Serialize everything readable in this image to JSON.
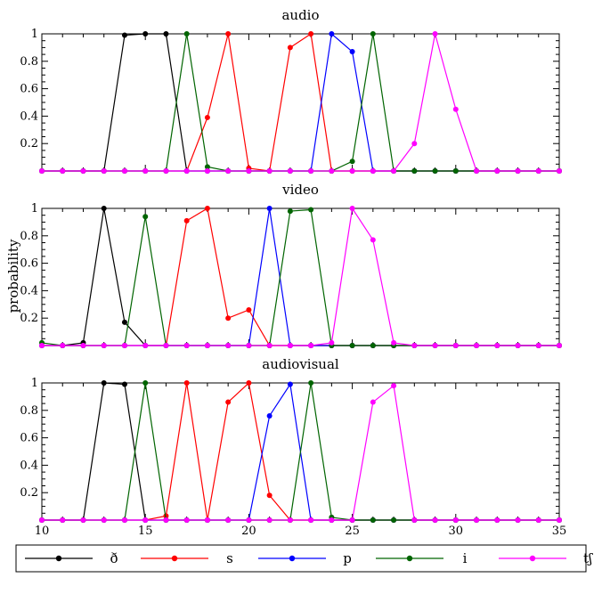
{
  "figure": {
    "ylabel": "probability"
  },
  "chart_data": [
    {
      "type": "line",
      "title": "audio",
      "xlim": [
        10,
        35
      ],
      "ylim": [
        0,
        1
      ],
      "yticks": [
        "0.2",
        "0.4",
        "0.6",
        "0.8",
        "1"
      ],
      "xticks": [
        "10",
        "15",
        "20",
        "25",
        "30",
        "35"
      ],
      "show_xtick_labels": false,
      "x": [
        10,
        11,
        12,
        13,
        14,
        15,
        16,
        17,
        18,
        19,
        20,
        21,
        22,
        23,
        24,
        25,
        26,
        27,
        28,
        29,
        30,
        31,
        32,
        33,
        34,
        35
      ],
      "series": [
        {
          "name": "ð",
          "color": "#000000",
          "values": [
            0,
            0,
            0,
            0,
            0.99,
            1,
            1,
            0,
            0,
            0,
            0,
            0,
            0,
            0,
            0,
            0,
            0,
            0,
            0,
            0,
            0,
            0,
            0,
            0,
            0,
            0
          ]
        },
        {
          "name": "s",
          "color": "#ff0000",
          "values": [
            0,
            0,
            0,
            0,
            0,
            0,
            0,
            0,
            0.39,
            1,
            0.02,
            0,
            0.9,
            1,
            0,
            0,
            0,
            0,
            0,
            0,
            0,
            0,
            0,
            0,
            0,
            0
          ]
        },
        {
          "name": "p",
          "color": "#0000ff",
          "values": [
            0,
            0,
            0,
            0,
            0,
            0,
            0,
            0,
            0,
            0,
            0,
            0,
            0,
            0,
            1,
            0.87,
            0,
            0,
            0,
            0,
            0,
            0,
            0,
            0,
            0,
            0
          ]
        },
        {
          "name": "i",
          "color": "#006400",
          "values": [
            0,
            0,
            0,
            0,
            0,
            0,
            0,
            1,
            0.03,
            0,
            0,
            0,
            0,
            0,
            0,
            0.07,
            1,
            0,
            0,
            0,
            0,
            0,
            0,
            0,
            0,
            0
          ]
        },
        {
          "name": "tʃ",
          "color": "#ff00ff",
          "values": [
            0,
            0,
            0,
            0,
            0,
            0,
            0,
            0,
            0,
            0,
            0,
            0,
            0,
            0,
            0,
            0,
            0,
            0,
            0.2,
            1,
            0.45,
            0,
            0,
            0,
            0,
            0
          ]
        }
      ]
    },
    {
      "type": "line",
      "title": "video",
      "xlim": [
        10,
        35
      ],
      "ylim": [
        0,
        1
      ],
      "yticks": [
        "0.2",
        "0.4",
        "0.6",
        "0.8",
        "1"
      ],
      "xticks": [
        "10",
        "15",
        "20",
        "25",
        "30",
        "35"
      ],
      "show_xtick_labels": false,
      "x": [
        10,
        11,
        12,
        13,
        14,
        15,
        16,
        17,
        18,
        19,
        20,
        21,
        22,
        23,
        24,
        25,
        26,
        27,
        28,
        29,
        30,
        31,
        32,
        33,
        34,
        35
      ],
      "series": [
        {
          "name": "ð",
          "color": "#000000",
          "values": [
            0,
            0,
            0.02,
            1,
            0.17,
            0,
            0,
            0,
            0,
            0,
            0,
            0,
            0,
            0,
            0,
            0,
            0,
            0,
            0,
            0,
            0,
            0,
            0,
            0,
            0,
            0
          ]
        },
        {
          "name": "s",
          "color": "#ff0000",
          "values": [
            0,
            0,
            0,
            0,
            0,
            0,
            0,
            0.91,
            1,
            0.2,
            0.26,
            0,
            0,
            0,
            0,
            0,
            0,
            0,
            0,
            0,
            0,
            0,
            0,
            0,
            0,
            0
          ]
        },
        {
          "name": "p",
          "color": "#0000ff",
          "values": [
            0,
            0,
            0,
            0,
            0,
            0,
            0,
            0,
            0,
            0,
            0,
            1,
            0,
            0,
            0,
            0,
            0,
            0,
            0,
            0,
            0,
            0,
            0,
            0,
            0,
            0
          ]
        },
        {
          "name": "i",
          "color": "#006400",
          "values": [
            0.02,
            0,
            0,
            0,
            0,
            0.94,
            0,
            0,
            0,
            0,
            0,
            0,
            0.98,
            0.99,
            0,
            0,
            0,
            0,
            0,
            0,
            0,
            0,
            0,
            0,
            0,
            0
          ]
        },
        {
          "name": "tʃ",
          "color": "#ff00ff",
          "values": [
            0,
            0,
            0,
            0,
            0,
            0,
            0,
            0,
            0,
            0,
            0,
            0,
            0,
            0,
            0.02,
            1,
            0.77,
            0.02,
            0,
            0,
            0,
            0,
            0,
            0,
            0,
            0
          ]
        }
      ]
    },
    {
      "type": "line",
      "title": "audiovisual",
      "xlim": [
        10,
        35
      ],
      "ylim": [
        0,
        1
      ],
      "yticks": [
        "0.2",
        "0.4",
        "0.6",
        "0.8",
        "1"
      ],
      "xticks": [
        "10",
        "15",
        "20",
        "25",
        "30",
        "35"
      ],
      "show_xtick_labels": true,
      "x": [
        10,
        11,
        12,
        13,
        14,
        15,
        16,
        17,
        18,
        19,
        20,
        21,
        22,
        23,
        24,
        25,
        26,
        27,
        28,
        29,
        30,
        31,
        32,
        33,
        34,
        35
      ],
      "series": [
        {
          "name": "ð",
          "color": "#000000",
          "values": [
            0,
            0,
            0,
            1,
            0.99,
            0,
            0,
            0,
            0,
            0,
            0,
            0,
            0,
            0,
            0,
            0,
            0,
            0,
            0,
            0,
            0,
            0,
            0,
            0,
            0,
            0
          ]
        },
        {
          "name": "s",
          "color": "#ff0000",
          "values": [
            0,
            0,
            0,
            0,
            0,
            0,
            0.03,
            1,
            0,
            0.86,
            1,
            0.18,
            0,
            0,
            0,
            0,
            0,
            0,
            0,
            0,
            0,
            0,
            0,
            0,
            0,
            0
          ]
        },
        {
          "name": "p",
          "color": "#0000ff",
          "values": [
            0,
            0,
            0,
            0,
            0,
            0,
            0,
            0,
            0,
            0,
            0,
            0.76,
            0.99,
            0,
            0,
            0,
            0,
            0,
            0,
            0,
            0,
            0,
            0,
            0,
            0,
            0
          ]
        },
        {
          "name": "i",
          "color": "#006400",
          "values": [
            0,
            0,
            0,
            0,
            0,
            1,
            0,
            0,
            0,
            0,
            0,
            0,
            0,
            1,
            0.02,
            0,
            0,
            0,
            0,
            0,
            0,
            0,
            0,
            0,
            0,
            0
          ]
        },
        {
          "name": "tʃ",
          "color": "#ff00ff",
          "values": [
            0,
            0,
            0,
            0,
            0,
            0,
            0,
            0,
            0,
            0,
            0,
            0,
            0,
            0,
            0,
            0,
            0.86,
            0.98,
            0,
            0,
            0,
            0,
            0,
            0,
            0,
            0
          ]
        }
      ]
    }
  ],
  "legend": {
    "placement": "bottom",
    "items": [
      {
        "label": "ð",
        "color": "#000000"
      },
      {
        "label": "s",
        "color": "#ff0000"
      },
      {
        "label": "p",
        "color": "#0000ff"
      },
      {
        "label": "i",
        "color": "#006400"
      },
      {
        "label": "tʃ",
        "color": "#ff00ff"
      }
    ]
  }
}
